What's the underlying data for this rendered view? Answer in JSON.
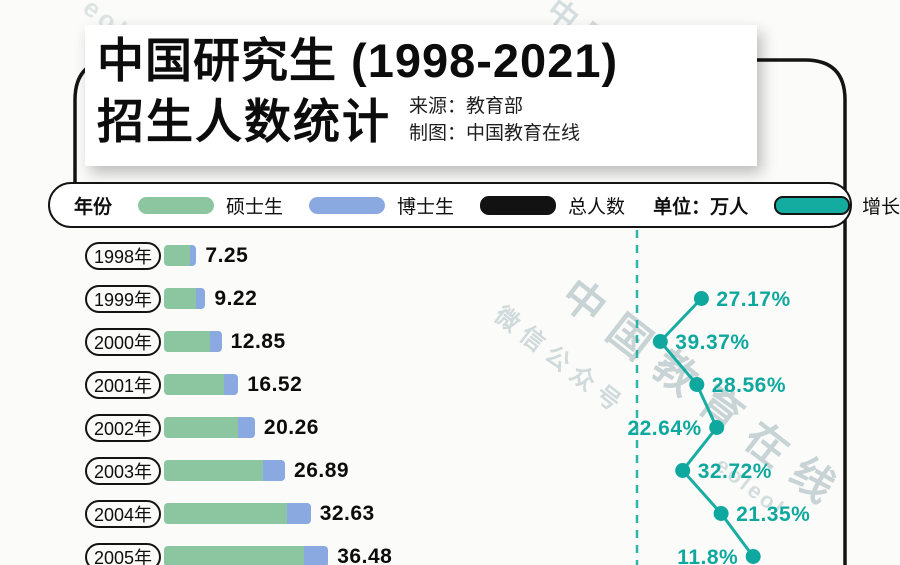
{
  "title": {
    "line1": "中国研究生 (1998-2021)",
    "line2": "招生人数统计",
    "source": "来源：教育部",
    "credit": "制图：中国教育在线"
  },
  "legend": {
    "year_label": "年份",
    "masters_label": "硕士生",
    "doctoral_label": "博士生",
    "total_label": "总人数",
    "unit_label": "单位：万人",
    "growth_label": "增长率"
  },
  "colors": {
    "masters": "#8CC6A0",
    "doctoral": "#8AA9E0",
    "total": "#121212",
    "growth": "#0FA89E",
    "growth_line": "#18ADA3",
    "frame": "#141414"
  },
  "watermarks": [
    {
      "text": "中国教育在线"
    },
    {
      "text": "微信公众号"
    },
    {
      "text": "eoleol"
    },
    {
      "text": "中国教育在线"
    },
    {
      "text": "eol"
    }
  ],
  "chart_data": {
    "type": "bar",
    "title": "中国研究生 (1998-2021) 招生人数统计",
    "unit": "万人",
    "note": "Stacked horizontal bars: masters (green) + doctoral (blue); teal dotted-line panel on right shows YoY growth rate. Rows after 2005 are cut off by the screenshot edge.",
    "categories": [
      "1998年",
      "1999年",
      "2000年",
      "2001年",
      "2002年",
      "2003年",
      "2004年",
      "2005年"
    ],
    "totals": [
      7.25,
      9.22,
      12.85,
      16.52,
      20.26,
      26.89,
      32.63,
      36.48
    ],
    "total_labels": [
      "7.25",
      "9.22",
      "12.85",
      "16.52",
      "20.26",
      "26.89",
      "32.63",
      "36.48"
    ],
    "growth_pct": [
      null,
      27.17,
      39.37,
      28.56,
      22.64,
      32.72,
      21.35,
      11.8
    ],
    "growth_labels": [
      "",
      "27.17%",
      "39.37%",
      "28.56%",
      "22.64%",
      "32.72%",
      "21.35%",
      "11.8%"
    ],
    "series": [
      {
        "name": "硕士生",
        "color": "#8CC6A0",
        "values_est": [
          5.7,
          7.2,
          10.3,
          13.3,
          16.4,
          22.0,
          27.3,
          31.0
        ]
      },
      {
        "name": "博士生",
        "color": "#8AA9E0",
        "values_est": [
          1.5,
          2.0,
          2.5,
          3.2,
          3.8,
          4.9,
          5.3,
          5.5
        ]
      }
    ],
    "legend_position": "top",
    "grid": "off",
    "partially_visible_last_row": true
  }
}
